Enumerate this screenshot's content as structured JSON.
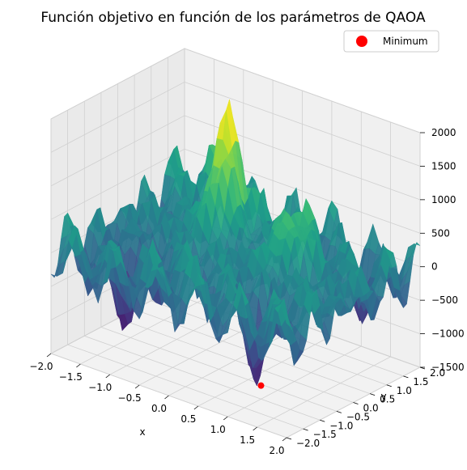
{
  "chart_data": {
    "type": "surface3d",
    "title": "Función objetivo en función de los parámetros de QAOA",
    "xlabel": "x",
    "ylabel": "y",
    "zlabel": "",
    "xlim": [
      -2.0,
      2.0
    ],
    "ylim": [
      -2.0,
      2.0
    ],
    "zlim": [
      -1500,
      2000
    ],
    "x_ticks": [
      "−2.0",
      "−1.5",
      "−1.0",
      "−0.5",
      "0.0",
      "0.5",
      "1.0",
      "1.5",
      "2.0"
    ],
    "y_ticks": [
      "−2.0",
      "−1.5",
      "−1.0",
      "−0.5",
      "0.0",
      "0.5",
      "1.0",
      "1.5",
      "2.0"
    ],
    "z_ticks": [
      "−1500",
      "−1000",
      "−500",
      "0",
      "500",
      "1000",
      "1500",
      "2000"
    ],
    "x_tick_values": [
      -2.0,
      -1.5,
      -1.0,
      -0.5,
      0.0,
      0.5,
      1.0,
      1.5,
      2.0
    ],
    "y_tick_values": [
      -2.0,
      -1.5,
      -1.0,
      -0.5,
      0.0,
      0.5,
      1.0,
      1.5,
      2.0
    ],
    "z_tick_values": [
      -1500,
      -1000,
      -500,
      0,
      500,
      1000,
      1500,
      2000
    ],
    "colormap": "viridis",
    "z_max_approx": 1800,
    "z_min_approx": -1300,
    "legend": {
      "position": "top-right",
      "entries": [
        {
          "label": "Minimum",
          "marker": "circle",
          "color": "#ff0000"
        }
      ]
    },
    "minimum_point": {
      "x": 1.0,
      "y": -1.0
    },
    "grid": true
  }
}
